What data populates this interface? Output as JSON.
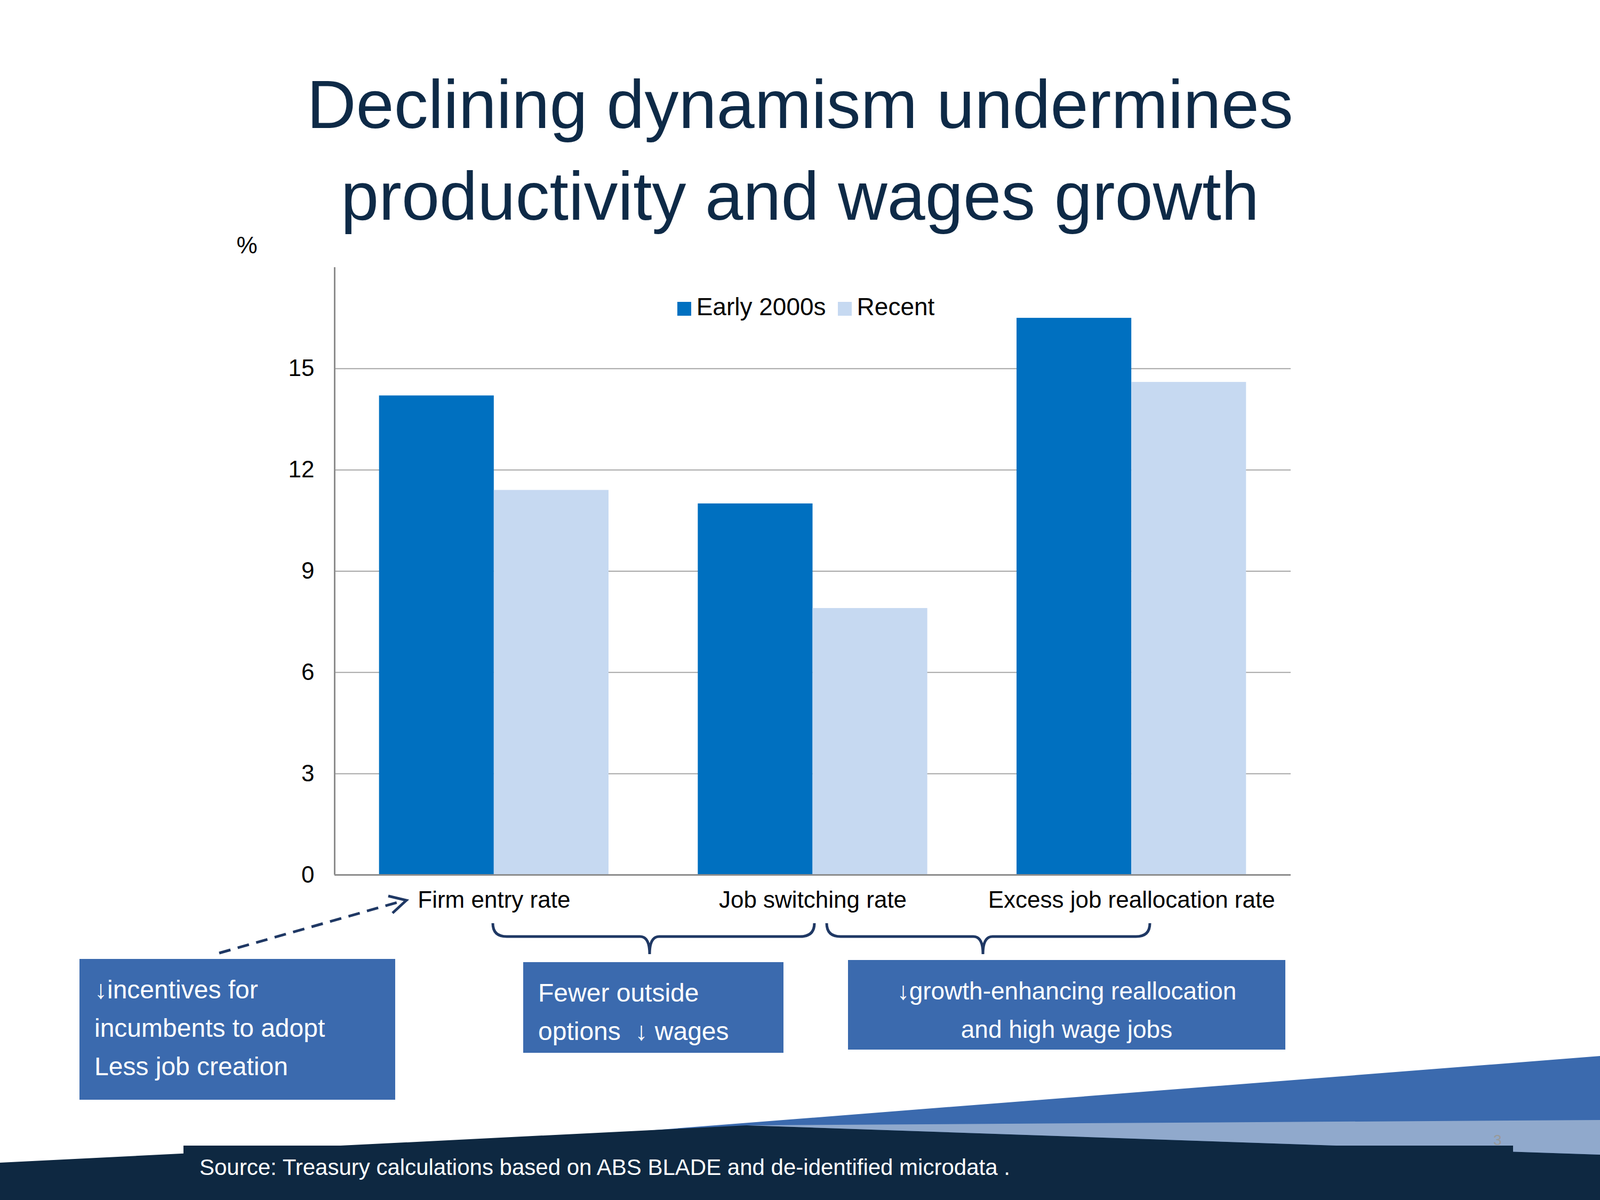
{
  "chart_data": {
    "type": "bar",
    "title": "Declining dynamism undermines productivity and wages growth",
    "y_label": "%",
    "categories": [
      "Firm entry rate",
      "Job switching rate",
      "Excess job reallocation rate"
    ],
    "series": [
      {
        "name": "Early 2000s",
        "color": "#0070c0",
        "values": [
          14.2,
          11.0,
          16.5
        ]
      },
      {
        "name": "Recent",
        "color": "#c6d9f1",
        "values": [
          11.4,
          7.9,
          14.6
        ]
      }
    ],
    "ylim": [
      0,
      18
    ],
    "yticks": [
      0,
      3,
      6,
      9,
      12,
      15
    ],
    "grid": true,
    "legend": "top",
    "annotations": [
      {
        "lines": [
          "↓incentives for",
          "incumbents to adopt",
          "Less job creation"
        ]
      },
      {
        "lines": [
          "Fewer outside",
          "options  ↓ wages"
        ]
      },
      {
        "lines": [
          "↓growth-enhancing reallocation",
          "and high wage jobs"
        ]
      }
    ],
    "source": "Source: Treasury calculations based on ABS BLADE and de-identified microdata .",
    "page_number": "3"
  }
}
